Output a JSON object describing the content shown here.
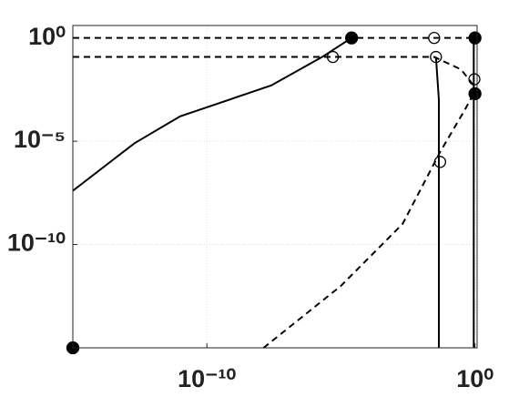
{
  "chart_data": {
    "type": "line",
    "xscale": "log",
    "yscale": "log",
    "xlim": [
      1e-15,
      1.2
    ],
    "ylim": [
      1e-15,
      4
    ],
    "xticks": [
      {
        "value": 1e-10,
        "label": "10⁻¹⁰"
      },
      {
        "value": 1,
        "label": "10⁰"
      }
    ],
    "yticks": [
      {
        "value": 1e-10,
        "label": "10⁻¹⁰"
      },
      {
        "value": 1e-05,
        "label": "10⁻⁵"
      },
      {
        "value": 1,
        "label": "10⁰"
      }
    ],
    "grid": true,
    "series": [
      {
        "color": "#000000",
        "style": "solid",
        "x": [
          1e-15,
          2e-13,
          1e-11,
          2.5e-08,
          2e-06,
          2.5e-05
        ],
        "values": [
          4e-08,
          8e-06,
          0.00016,
          0.005,
          0.12,
          1
        ]
      },
      {
        "color": "#000000",
        "style": "dashed",
        "x": [
          1e-15,
          1
        ],
        "values": [
          1,
          1
        ]
      },
      {
        "color": "#000000",
        "style": "dashed",
        "x": [
          1e-15,
          0.03,
          0.3,
          0.9
        ],
        "values": [
          0.12,
          0.12,
          0.03,
          0.005
        ]
      },
      {
        "color": "#000000",
        "style": "solid",
        "x": [
          0.035,
          0.045,
          0.045
        ],
        "values": [
          0.12,
          0.001,
          1e-15
        ]
      },
      {
        "color": "#000000",
        "style": "solid",
        "x": [
          0.9,
          0.9
        ],
        "values": [
          1,
          1e-15
        ]
      },
      {
        "color": "#000000",
        "style": "dashed",
        "x": [
          1.3e-08,
          1e-05,
          0.002,
          0.05,
          0.4,
          0.9
        ],
        "values": [
          1e-15,
          1e-12,
          1e-09,
          3e-06,
          0.0003,
          0.002
        ]
      },
      {
        "color": "#000000",
        "style": "none",
        "marker": "open",
        "x": [
          5e-06,
          0.03,
          0.035,
          0.05,
          0.95
        ],
        "values": [
          0.12,
          1,
          0.12,
          1e-06,
          0.01
        ]
      },
      {
        "color": "#000000",
        "style": "none",
        "marker": "filled",
        "x": [
          2.5e-05,
          1,
          1,
          1e-15
        ],
        "values": [
          1,
          1,
          0.002,
          1e-15
        ]
      }
    ]
  }
}
